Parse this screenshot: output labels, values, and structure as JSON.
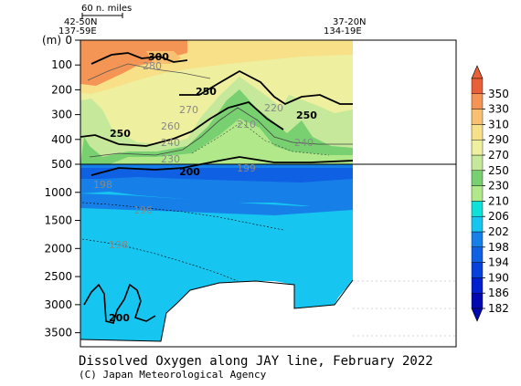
{
  "chart_data": {
    "type": "heatmap",
    "title": "Dissolved Oxygen along JAY line, February 2022",
    "credit": "(C) Japan Meteorological Agency",
    "ylabel": "(m)",
    "scale_bar_label": "60 n. miles",
    "left_station": {
      "lat": "42-50N",
      "lon": "137-59E"
    },
    "right_station": {
      "lat": "37-20N",
      "lon": "134-19E"
    },
    "y_upper_ticks": [
      "0",
      "100",
      "200",
      "300",
      "400",
      "500"
    ],
    "y_lower_ticks": [
      "1000",
      "1500",
      "2000",
      "2500",
      "3000",
      "3500"
    ],
    "upper_ylim": [
      0,
      500
    ],
    "lower_ylim": [
      500,
      3750
    ],
    "colorbar_levels": [
      182,
      186,
      190,
      194,
      198,
      202,
      206,
      210,
      230,
      250,
      270,
      290,
      310,
      330,
      350
    ],
    "colorbar_colors": [
      "#0008b0",
      "#0020d0",
      "#0840dc",
      "#1060e4",
      "#1680e8",
      "#17c6f0",
      "#0fe0d8",
      "#b0e88a",
      "#78d070",
      "#c6e89a",
      "#eef0a0",
      "#f7e088",
      "#f8c070",
      "#f59555",
      "#e8603a"
    ],
    "contour_labels": [
      {
        "text": "300",
        "color": "#000"
      },
      {
        "text": "280",
        "color": "#888"
      },
      {
        "text": "250",
        "color": "#000"
      },
      {
        "text": "270",
        "color": "#888"
      },
      {
        "text": "220",
        "color": "#888"
      },
      {
        "text": "250",
        "color": "#000"
      },
      {
        "text": "210",
        "color": "#888"
      },
      {
        "text": "260",
        "color": "#888"
      },
      {
        "text": "250",
        "color": "#000"
      },
      {
        "text": "240",
        "color": "#888"
      },
      {
        "text": "240",
        "color": "#888"
      },
      {
        "text": "230",
        "color": "#888"
      },
      {
        "text": "200",
        "color": "#000"
      },
      {
        "text": "199",
        "color": "#888"
      },
      {
        "text": "198",
        "color": "#888"
      },
      {
        "text": "196",
        "color": "#888"
      },
      {
        "text": "198",
        "color": "#888"
      },
      {
        "text": "200",
        "color": "#000"
      }
    ]
  }
}
